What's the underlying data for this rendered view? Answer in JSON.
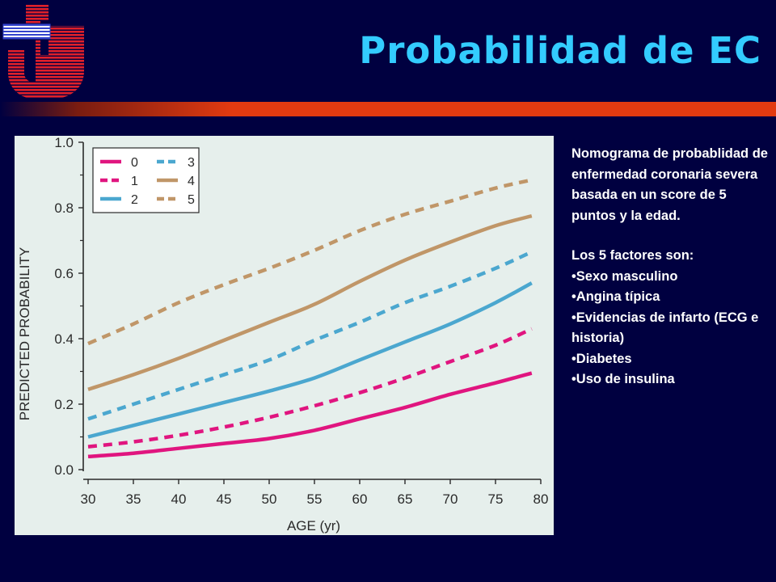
{
  "slide": {
    "title": "Probabilidad de EC",
    "description": "Nomograma de probablidad de enfermedad coronaria severa basada en un score de 5 puntos y la edad.",
    "factors_heading": "Los 5 factores son:",
    "factors": [
      "•Sexo masculino",
      "•Angina típica",
      "•Evidencias de infarto (ECG e historia)",
      "•Diabetes",
      "•Uso de insulina"
    ]
  },
  "colors": {
    "background": "#000040",
    "title": "#33ccff",
    "rule": "#e23a10",
    "chart_background": "#e6efec"
  },
  "chart_data": {
    "type": "line",
    "title": "",
    "xlabel": "AGE (yr)",
    "ylabel": "PREDICTED PROBABILITY",
    "xlim": [
      30,
      80
    ],
    "ylim": [
      0,
      1
    ],
    "xticks": [
      "30",
      "35",
      "40",
      "45",
      "50",
      "55",
      "60",
      "65",
      "70",
      "75",
      "80"
    ],
    "yticks": [
      "0.0",
      "0.2",
      "0.4",
      "0.6",
      "0.8",
      "1.0"
    ],
    "grid": false,
    "legend_position": "top-left",
    "x": [
      30,
      35,
      40,
      45,
      50,
      55,
      60,
      65,
      70,
      75,
      79
    ],
    "series": [
      {
        "name": "0",
        "color": "#e0157f",
        "dashed": false,
        "values": [
          0.04,
          0.05,
          0.065,
          0.08,
          0.095,
          0.12,
          0.155,
          0.19,
          0.23,
          0.265,
          0.295
        ]
      },
      {
        "name": "1",
        "color": "#e0157f",
        "dashed": true,
        "values": [
          0.07,
          0.085,
          0.105,
          0.13,
          0.16,
          0.195,
          0.235,
          0.28,
          0.33,
          0.38,
          0.43
        ]
      },
      {
        "name": "2",
        "color": "#4ba7cf",
        "dashed": false,
        "values": [
          0.1,
          0.135,
          0.17,
          0.205,
          0.24,
          0.28,
          0.335,
          0.39,
          0.445,
          0.51,
          0.57
        ]
      },
      {
        "name": "3",
        "color": "#4ba7cf",
        "dashed": true,
        "values": [
          0.155,
          0.2,
          0.245,
          0.29,
          0.335,
          0.395,
          0.45,
          0.51,
          0.56,
          0.615,
          0.665
        ]
      },
      {
        "name": "4",
        "color": "#c09668",
        "dashed": false,
        "values": [
          0.245,
          0.29,
          0.34,
          0.395,
          0.45,
          0.505,
          0.575,
          0.64,
          0.695,
          0.745,
          0.775
        ]
      },
      {
        "name": "5",
        "color": "#c09668",
        "dashed": true,
        "values": [
          0.385,
          0.445,
          0.51,
          0.565,
          0.615,
          0.67,
          0.73,
          0.78,
          0.82,
          0.86,
          0.885
        ]
      }
    ]
  }
}
